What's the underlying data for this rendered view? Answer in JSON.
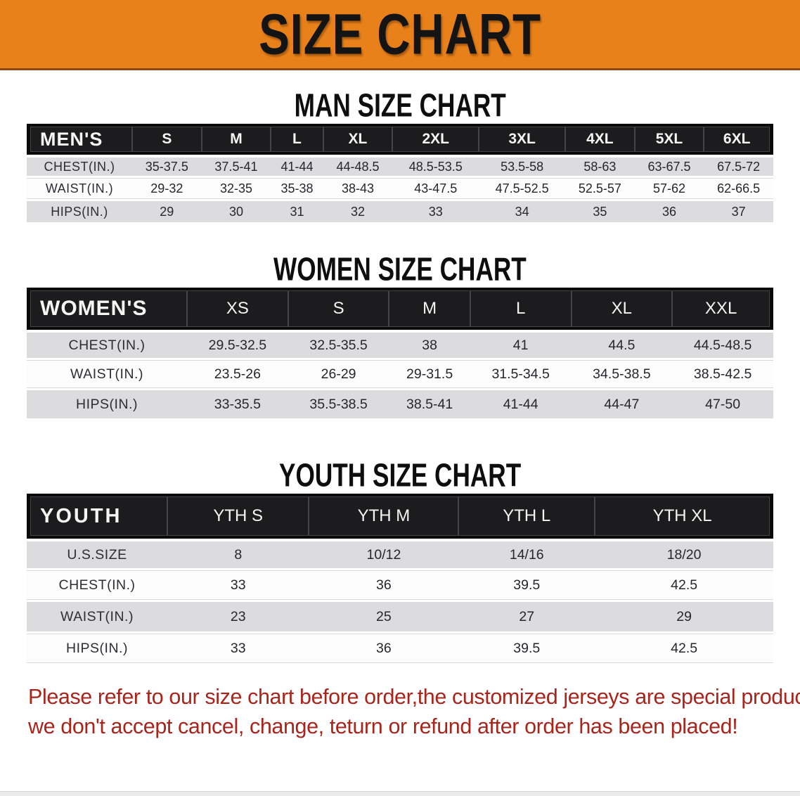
{
  "colors": {
    "banner_bg": "#E8811A",
    "table_header_bg": "#1C1C1E",
    "row_gray": "#DCDCDF",
    "disclaimer_red": "#A9251C"
  },
  "banner": {
    "title": "SIZE CHART"
  },
  "sections": {
    "men": {
      "heading": "MAN SIZE CHART",
      "corner": "MEN'S",
      "sizes": [
        "S",
        "M",
        "L",
        "XL",
        "2XL",
        "3XL",
        "4XL",
        "5XL",
        "6XL"
      ],
      "rows": [
        {
          "label": "CHEST(IN.)",
          "values": [
            "35-37.5",
            "37.5-41",
            "41-44",
            "44-48.5",
            "48.5-53.5",
            "53.5-58",
            "58-63",
            "63-67.5",
            "67.5-72"
          ]
        },
        {
          "label": "WAIST(IN.)",
          "values": [
            "29-32",
            "32-35",
            "35-38",
            "38-43",
            "43-47.5",
            "47.5-52.5",
            "52.5-57",
            "57-62",
            "62-66.5"
          ]
        },
        {
          "label": "HIPS(IN.)",
          "values": [
            "29",
            "30",
            "31",
            "32",
            "33",
            "34",
            "35",
            "36",
            "37"
          ]
        }
      ]
    },
    "women": {
      "heading": "WOMEN SIZE CHART",
      "corner": "WOMEN'S",
      "sizes": [
        "XS",
        "S",
        "M",
        "L",
        "XL",
        "XXL"
      ],
      "rows": [
        {
          "label": "CHEST(IN.)",
          "values": [
            "29.5-32.5",
            "32.5-35.5",
            "38",
            "41",
            "44.5",
            "44.5-48.5"
          ]
        },
        {
          "label": "WAIST(IN.)",
          "values": [
            "23.5-26",
            "26-29",
            "29-31.5",
            "31.5-34.5",
            "34.5-38.5",
            "38.5-42.5"
          ]
        },
        {
          "label": "HIPS(IN.)",
          "values": [
            "33-35.5",
            "35.5-38.5",
            "38.5-41",
            "41-44",
            "44-47",
            "47-50"
          ]
        }
      ]
    },
    "youth": {
      "heading": "YOUTH SIZE CHART",
      "corner": "YOUTH",
      "sizes": [
        "YTH S",
        "YTH M",
        "YTH L",
        "YTH XL"
      ],
      "rows": [
        {
          "label": "U.S.SIZE",
          "values": [
            "8",
            "10/12",
            "14/16",
            "18/20"
          ]
        },
        {
          "label": "CHEST(IN.)",
          "values": [
            "33",
            "36",
            "39.5",
            "42.5"
          ]
        },
        {
          "label": "WAIST(IN.)",
          "values": [
            "23",
            "25",
            "27",
            "29"
          ]
        },
        {
          "label": "HIPS(IN.)",
          "values": [
            "33",
            "36",
            "39.5",
            "42.5"
          ]
        }
      ]
    }
  },
  "disclaimer": {
    "line1": "Please refer to our size chart before order,the customized jerseys are special products,",
    "line2": "we don't accept cancel, change, teturn or refund after order has been placed!"
  }
}
